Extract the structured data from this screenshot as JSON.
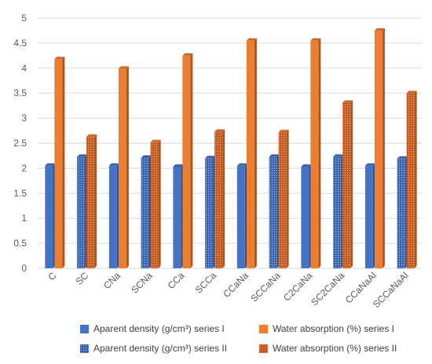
{
  "chart_data": {
    "type": "bar",
    "categories": [
      "C",
      "SC",
      "CNa",
      "SCNa",
      "CCa",
      "SCCa",
      "CCaNa",
      "SCCaNa",
      "C2CaNa",
      "SC2CaNa",
      "CCaNaAl",
      "SCCaNaAl"
    ],
    "series": [
      {
        "name": "Aparent density (g/cm³) series I",
        "values": [
          2.05,
          null,
          2.05,
          null,
          2.03,
          null,
          2.05,
          null,
          2.03,
          null,
          2.05,
          null
        ],
        "color": "#4472C4",
        "pattern": "solid"
      },
      {
        "name": "Water absorption (%) series I",
        "values": [
          4.18,
          null,
          3.99,
          null,
          4.25,
          null,
          4.55,
          null,
          4.55,
          null,
          4.75,
          null
        ],
        "color": "#ED7D31",
        "pattern": "solid"
      },
      {
        "name": "Aparent density (g/cm³) series II",
        "values": [
          null,
          2.23,
          null,
          2.21,
          null,
          2.2,
          null,
          2.23,
          null,
          2.23,
          null,
          2.19
        ],
        "color": "#4472C4",
        "pattern": "dotted"
      },
      {
        "name": "Water absorption (%) series II",
        "values": [
          null,
          2.63,
          null,
          2.52,
          null,
          2.73,
          null,
          2.72,
          null,
          3.31,
          null,
          3.5
        ],
        "color": "#ED7D31",
        "pattern": "dotted"
      }
    ],
    "ylim": [
      0,
      5
    ],
    "yticks": [
      "0",
      "0.5",
      "1",
      "1.5",
      "2",
      "2.5",
      "3",
      "3.5",
      "4",
      "4.5",
      "5"
    ],
    "grid": true,
    "legend_position": "bottom",
    "title": "",
    "xlabel": "",
    "ylabel": ""
  }
}
